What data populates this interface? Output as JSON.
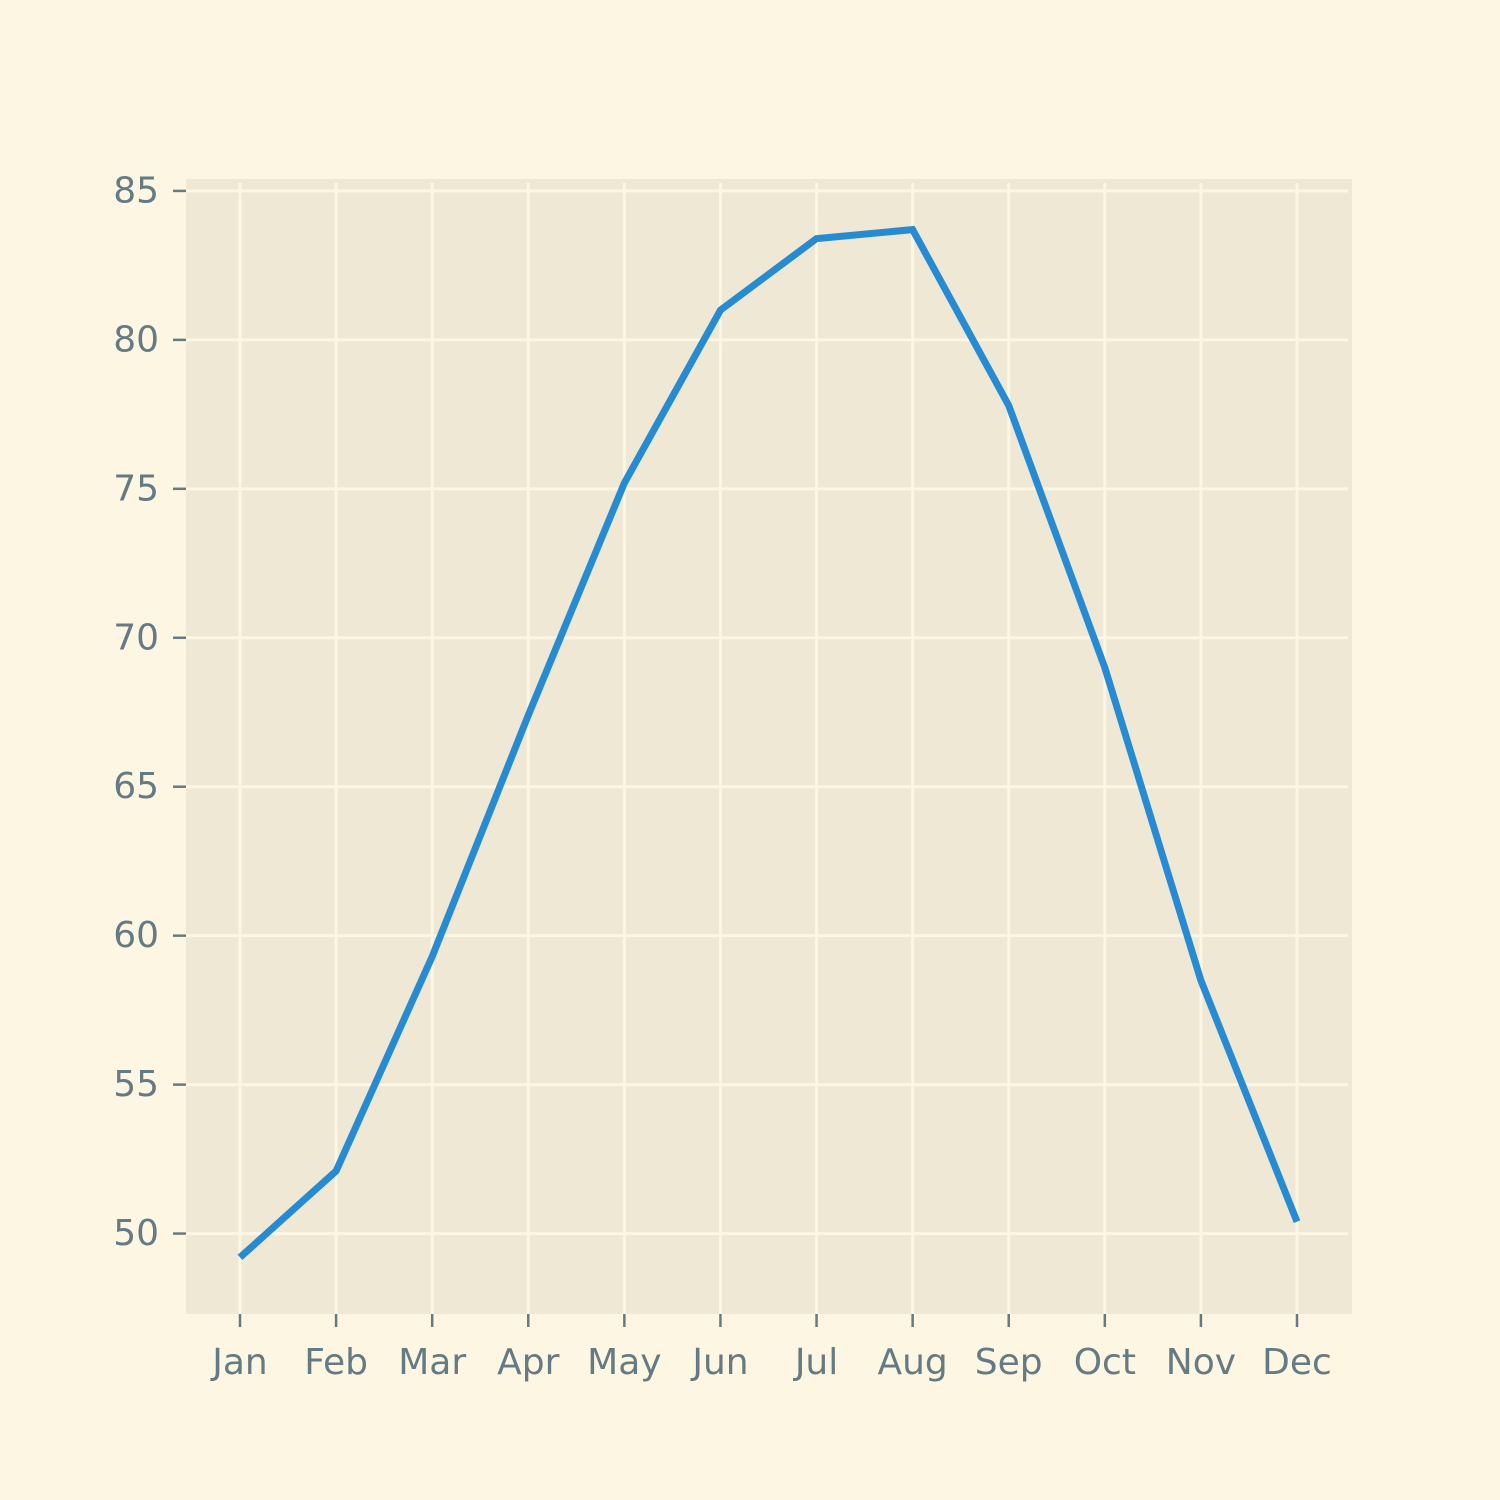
{
  "colors": {
    "page_background": "#fdf6e3",
    "plot_background": "#eee8d5",
    "grid": "#fdf6e3",
    "tick": "#657b83",
    "series": "#268bd2"
  },
  "chart_data": {
    "type": "line",
    "title": "",
    "xlabel": "",
    "ylabel": "",
    "categories": [
      "Jan",
      "Feb",
      "Mar",
      "Apr",
      "May",
      "Jun",
      "Jul",
      "Aug",
      "Sep",
      "Oct",
      "Nov",
      "Dec"
    ],
    "series": [
      {
        "values": [
          49.2,
          52.1,
          59.3,
          67.4,
          75.2,
          81.0,
          83.4,
          83.7,
          77.8,
          69.0,
          58.5,
          50.4
        ]
      }
    ],
    "yticks": [
      50,
      55,
      60,
      65,
      70,
      75,
      80,
      85
    ],
    "ylim": [
      47.3,
      85.4
    ],
    "grid": true,
    "legend": "none"
  }
}
